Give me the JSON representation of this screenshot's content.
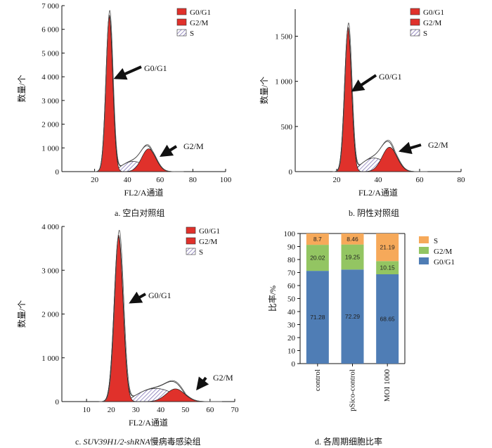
{
  "histogram_legend": [
    "G0/G1",
    "G2/M",
    "S"
  ],
  "panels": [
    {
      "caption": "a.  空白对照组",
      "ylabel": "数量/个",
      "xlabel": "FL2/A通道",
      "xlim": [
        0,
        100
      ],
      "ylim": [
        0,
        7000
      ],
      "xticks": [
        20,
        40,
        60,
        80,
        100
      ],
      "xtick_labels": [
        "20",
        "40",
        "60",
        "80",
        "100"
      ],
      "yticks": [
        0,
        1000,
        2000,
        3000,
        4000,
        5000,
        6000,
        7000
      ],
      "ytick_labels": [
        "0",
        "1 000",
        "2 000",
        "3 000",
        "4 000",
        "5 000",
        "6 000",
        "7 000"
      ],
      "g1_peak": {
        "center": 29,
        "height": 6600,
        "sigma": 2.1
      },
      "g2_peak": {
        "center": 53,
        "height": 960,
        "sigma": 4.3
      },
      "s_phase": {
        "from": 32,
        "to": 55,
        "height": 430
      },
      "g1_annotation": "G0/G1",
      "g2_annotation": "G2/M",
      "g1_arrow_tip": {
        "x": 33,
        "y": 3950
      },
      "g2_arrow_tip": {
        "x": 61,
        "y": 680
      }
    },
    {
      "caption": "b.  阴性对照组",
      "ylabel": "数量/个",
      "xlabel": "FL2/A通道",
      "xlim": [
        0,
        80
      ],
      "ylim": [
        0,
        1800
      ],
      "xticks": [
        20,
        40,
        60,
        80
      ],
      "xtick_labels": [
        "20",
        "40",
        "60",
        "80"
      ],
      "yticks": [
        0,
        500,
        1000,
        1500
      ],
      "ytick_labels": [
        "0",
        "500",
        "1 000",
        "1 500"
      ],
      "g1_peak": {
        "center": 25.5,
        "height": 1600,
        "sigma": 1.7
      },
      "g2_peak": {
        "center": 45.5,
        "height": 270,
        "sigma": 3.6
      },
      "s_phase": {
        "from": 28,
        "to": 48,
        "height": 150
      },
      "g1_annotation": "G0/G1",
      "g2_annotation": "G2/M",
      "g1_arrow_tip": {
        "x": 28,
        "y": 900
      },
      "g2_arrow_tip": {
        "x": 51,
        "y": 230
      }
    },
    {
      "caption_pre": "c.  ",
      "caption_italic": "SUV39H1/2-shRNA",
      "caption_post": "慢病毒感染组",
      "ylabel": "数量/个",
      "xlabel": "FL2/A通道",
      "xlim": [
        0,
        70
      ],
      "ylim": [
        0,
        4000
      ],
      "xticks": [
        10,
        20,
        30,
        40,
        50,
        60,
        70
      ],
      "xtick_labels": [
        "10",
        "20",
        "30",
        "40",
        "50",
        "60",
        "70"
      ],
      "yticks": [
        0,
        1000,
        2000,
        3000,
        4000
      ],
      "ytick_labels": [
        "0",
        "1 000",
        "2 000",
        "3 000",
        "4 000"
      ],
      "g1_peak": {
        "center": 23,
        "height": 3800,
        "sigma": 1.8
      },
      "g2_peak": {
        "center": 46,
        "height": 290,
        "sigma": 3.7
      },
      "s_phase": {
        "from": 26,
        "to": 50,
        "height": 300
      },
      "g1_annotation": "G0/G1",
      "g2_annotation": "G2/M",
      "g1_arrow_tip": {
        "x": 28,
        "y": 2270
      },
      "g2_arrow_tip": {
        "x": 55,
        "y": 300
      }
    }
  ],
  "chart_data": {
    "type": "bar",
    "stacked": true,
    "caption": "d.  各周期细胞比率",
    "ylabel": "比率/%",
    "ylim": [
      0,
      100
    ],
    "yticks": [
      0,
      10,
      20,
      30,
      40,
      50,
      60,
      70,
      80,
      90,
      100
    ],
    "categories": [
      "control",
      "pSico-control",
      "MOI 1000"
    ],
    "series": [
      {
        "name": "G0/G1",
        "color": "#4f7db5",
        "values": [
          71.28,
          72.29,
          68.65
        ],
        "labels": [
          "71.28",
          "72.29",
          "68.65"
        ]
      },
      {
        "name": "G2/M",
        "color": "#93c562",
        "values": [
          20.02,
          19.25,
          10.15
        ],
        "labels": [
          "20.02",
          "19.25",
          "10.15"
        ]
      },
      {
        "name": "S",
        "color": "#f6a95a",
        "values": [
          8.7,
          8.46,
          21.19
        ],
        "labels": [
          "8.7",
          "8.46",
          "21.19"
        ]
      }
    ],
    "legend_order": [
      "S",
      "G2/M",
      "G0/G1"
    ],
    "legend_position": "right"
  }
}
